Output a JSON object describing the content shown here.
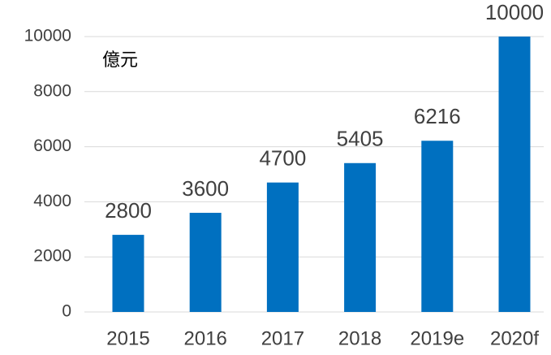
{
  "chart_data": {
    "type": "bar",
    "unit_label": "億元",
    "categories": [
      "2015",
      "2016",
      "2017",
      "2018",
      "2019e",
      "2020f"
    ],
    "values": [
      2800,
      3600,
      4700,
      5405,
      6216,
      10000
    ],
    "color": "#0070c0",
    "ylim": [
      0,
      10000
    ],
    "yticks": [
      0,
      2000,
      4000,
      6000,
      8000,
      10000
    ],
    "grid": true
  }
}
